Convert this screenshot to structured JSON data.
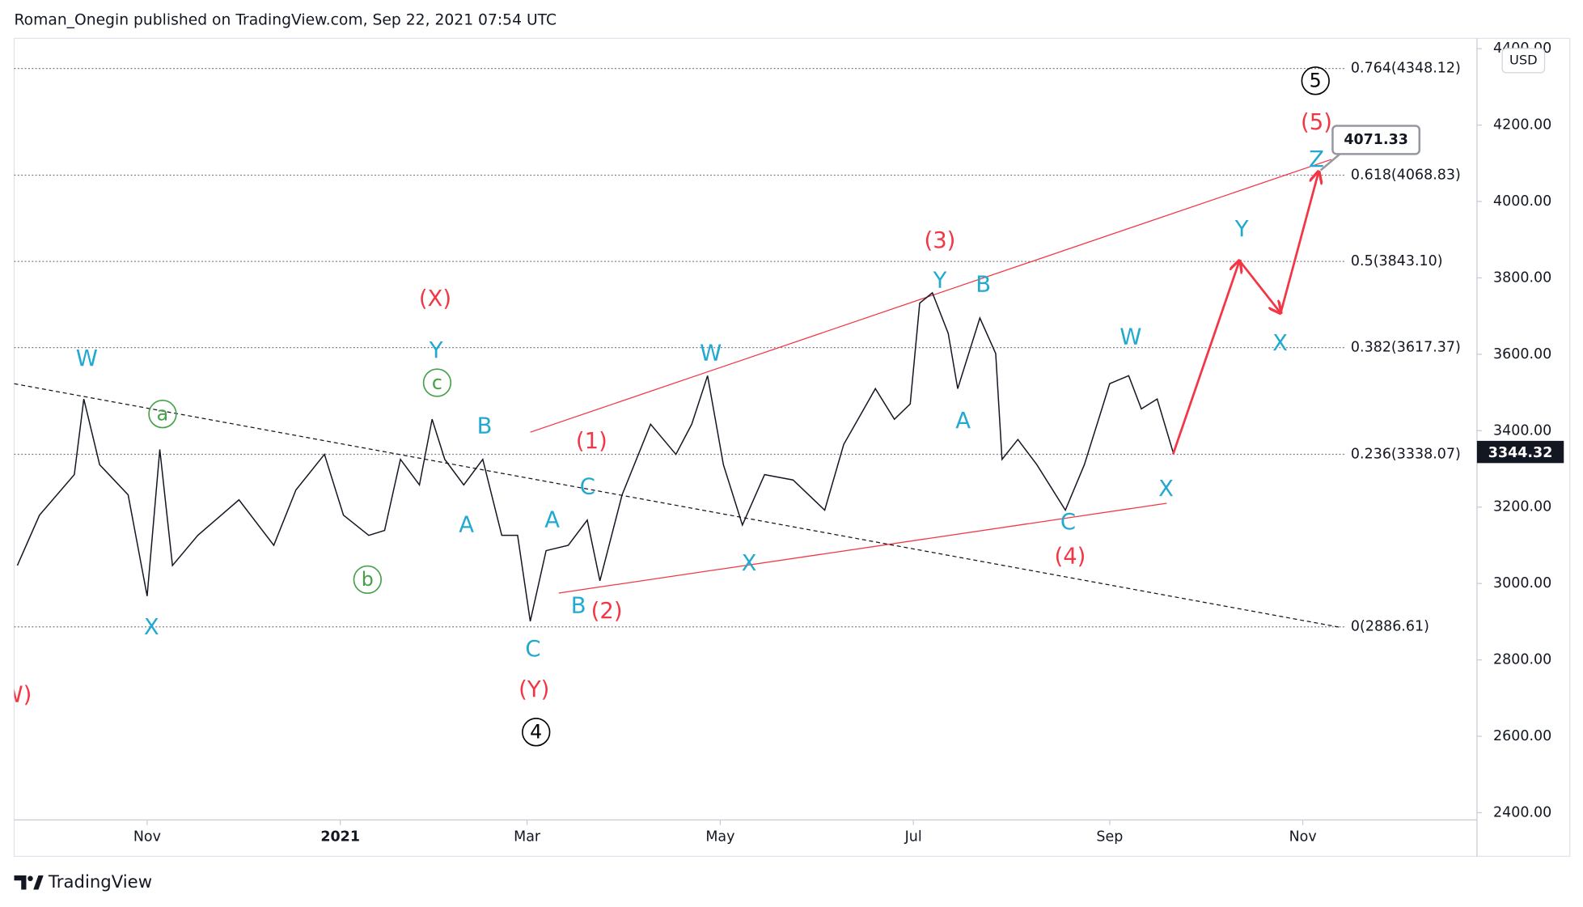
{
  "header": "Roman_Onegin published on TradingView.com, Sep 22, 2021 07:54 UTC",
  "footer": "TradingView",
  "chart_data": {
    "type": "line",
    "currency": "USD",
    "color": "#131722",
    "xlim": [
      "2020-09-20",
      "2021-12-26"
    ],
    "xticks": [
      {
        "value": "2020-11",
        "label": "Nov"
      },
      {
        "value": "2021-01",
        "label": "2021"
      },
      {
        "value": "2021-03",
        "label": "Mar"
      },
      {
        "value": "2021-05",
        "label": "May"
      },
      {
        "value": "2021-07",
        "label": "Jul"
      },
      {
        "value": "2021-09",
        "label": "Sep"
      },
      {
        "value": "2021-11",
        "label": "Nov"
      }
    ],
    "ylim": [
      2381,
      4427
    ],
    "yticks": [
      {
        "value": 2400,
        "label": "2400.00"
      },
      {
        "value": 2600,
        "label": "2600.00"
      },
      {
        "value": 2800,
        "label": "2800.00"
      },
      {
        "value": 3000,
        "label": "3000.00"
      },
      {
        "value": 3200,
        "label": "3200.00"
      },
      {
        "value": 3400,
        "label": "3400.00"
      },
      {
        "value": 3600,
        "label": "3600.00"
      },
      {
        "value": 3800,
        "label": "3800.00"
      },
      {
        "value": 4000,
        "label": "4000.00"
      },
      {
        "value": 4200,
        "label": "4200.00"
      },
      {
        "value": 4400,
        "label": "4400.00"
      }
    ],
    "x": [
      "2020-09-21",
      "2020-09-28",
      "2020-10-09",
      "2020-10-12",
      "2020-10-17",
      "2020-10-26",
      "2020-11-01",
      "2020-11-05",
      "2020-11-09",
      "2020-11-17",
      "2020-11-30",
      "2020-12-11",
      "2020-12-18",
      "2020-12-27",
      "2021-01-02",
      "2021-01-10",
      "2021-01-15",
      "2021-01-20",
      "2021-01-26",
      "2021-01-30",
      "2021-02-03",
      "2021-02-09",
      "2021-02-15",
      "2021-02-21",
      "2021-02-26",
      "2021-03-02",
      "2021-03-07",
      "2021-03-14",
      "2021-03-20",
      "2021-03-24",
      "2021-03-31",
      "2021-04-09",
      "2021-04-17",
      "2021-04-22",
      "2021-04-27",
      "2021-05-02",
      "2021-05-08",
      "2021-05-15",
      "2021-05-24",
      "2021-06-03",
      "2021-06-09",
      "2021-06-19",
      "2021-06-25",
      "2021-06-30",
      "2021-07-03",
      "2021-07-07",
      "2021-07-12",
      "2021-07-15",
      "2021-07-22",
      "2021-07-27",
      "2021-07-29",
      "2021-08-03",
      "2021-08-09",
      "2021-08-18",
      "2021-08-24",
      "2021-08-29",
      "2021-09-01",
      "2021-09-07",
      "2021-09-11",
      "2021-09-16",
      "2021-09-21"
    ],
    "values": [
      3047,
      3179,
      3285,
      3483,
      3311,
      3232,
      2967,
      3351,
      3047,
      3126,
      3219,
      3100,
      3245,
      3338,
      3179,
      3126,
      3139,
      3325,
      3258,
      3430,
      3325,
      3258,
      3325,
      3126,
      3126,
      2901,
      3086,
      3100,
      3166,
      3007,
      3232,
      3417,
      3338,
      3417,
      3544,
      3311,
      3153,
      3285,
      3271,
      3192,
      3364,
      3510,
      3430,
      3470,
      3734,
      3761,
      3655,
      3510,
      3695,
      3602,
      3325,
      3377,
      3311,
      3192,
      3311,
      3443,
      3523,
      3544,
      3457,
      3483,
      3344.32
    ],
    "last_price": 3344.32,
    "last_price_color": "#131722",
    "fib_levels": [
      {
        "value": 4348.12,
        "label": "0.764(4348.12)"
      },
      {
        "value": 4068.83,
        "label": "0.618(4068.83)"
      },
      {
        "value": 3843.1,
        "label": "0.5(3843.10)"
      },
      {
        "value": 3617.37,
        "label": "0.382(3617.37)"
      },
      {
        "value": 3338.07,
        "label": "0.236(3338.07)"
      },
      {
        "value": 2886.61,
        "label": "0(2886.61)"
      }
    ],
    "trendlines": [
      {
        "color": "#f23645",
        "dashed": false,
        "x": [
          "2021-03-02",
          "2021-11-10"
        ],
        "values": [
          3396,
          4110
        ]
      },
      {
        "color": "#f23645",
        "dashed": false,
        "x": [
          "2021-03-11",
          "2021-09-19"
        ],
        "values": [
          2975,
          3210
        ]
      },
      {
        "color": "#131722",
        "dashed": true,
        "x": [
          "2020-09-20",
          "2021-11-13"
        ],
        "values": [
          3523,
          2885
        ]
      }
    ],
    "projection": {
      "color": "#f23645",
      "x": [
        "2021-09-21",
        "2021-10-12",
        "2021-10-25",
        "2021-11-06"
      ],
      "values": [
        3338,
        3845,
        3708,
        4078
      ]
    },
    "callout": 4071.33,
    "labels": [
      {
        "text": "W",
        "color": "#22a9cf"
      },
      {
        "text": "X",
        "color": "#22a9cf"
      },
      {
        "text": "Y",
        "color": "#22a9cf"
      },
      {
        "text": "B",
        "color": "#22a9cf"
      },
      {
        "text": "A",
        "color": "#22a9cf"
      },
      {
        "text": "C",
        "color": "#22a9cf"
      },
      {
        "text": "A",
        "color": "#22a9cf"
      },
      {
        "text": "C",
        "color": "#22a9cf"
      },
      {
        "text": "B",
        "color": "#22a9cf"
      },
      {
        "text": "W",
        "color": "#22a9cf"
      },
      {
        "text": "X",
        "color": "#22a9cf"
      },
      {
        "text": "Y",
        "color": "#22a9cf"
      },
      {
        "text": "B",
        "color": "#22a9cf"
      },
      {
        "text": "A",
        "color": "#22a9cf"
      },
      {
        "text": "W",
        "color": "#22a9cf"
      },
      {
        "text": "C",
        "color": "#22a9cf"
      },
      {
        "text": "X",
        "color": "#22a9cf"
      },
      {
        "text": "Y",
        "color": "#22a9cf"
      },
      {
        "text": "X",
        "color": "#22a9cf"
      },
      {
        "text": "Z",
        "color": "#22a9cf"
      },
      {
        "text": "(W)",
        "color": "#f23645"
      },
      {
        "text": "(X)",
        "color": "#f23645"
      },
      {
        "text": "(Y)",
        "color": "#f23645"
      },
      {
        "text": "(1)",
        "color": "#f23645"
      },
      {
        "text": "(2)",
        "color": "#f23645"
      },
      {
        "text": "(3)",
        "color": "#f23645"
      },
      {
        "text": "(4)",
        "color": "#f23645"
      },
      {
        "text": "(5)",
        "color": "#f23645"
      },
      {
        "text": "a",
        "color": "#43a047",
        "circled": true
      },
      {
        "text": "b",
        "color": "#43a047",
        "circled": true
      },
      {
        "text": "c",
        "color": "#43a047",
        "circled": true
      },
      {
        "text": "4",
        "color": "#000000",
        "circled": true
      },
      {
        "text": "5",
        "color": "#000000",
        "circled": true
      }
    ]
  }
}
